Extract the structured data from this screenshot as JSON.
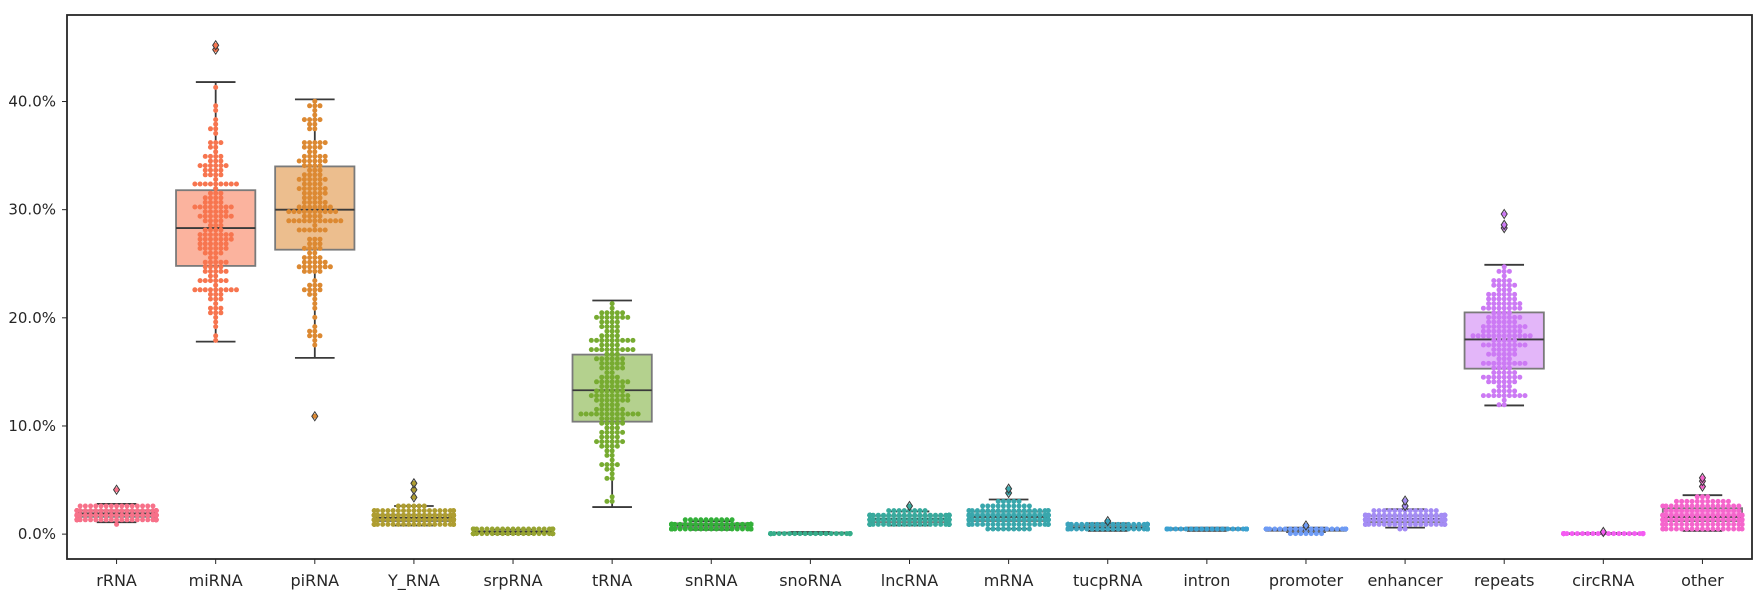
{
  "chart_data": {
    "type": "box+swarm",
    "title": "",
    "xlabel": "",
    "ylabel": "",
    "ylim": [
      -0.023,
      0.48
    ],
    "yticks": [
      0.0,
      0.1,
      0.2,
      0.3,
      0.4
    ],
    "ytick_labels": [
      "0.0%",
      "10.0%",
      "20.0%",
      "30.0%",
      "40.0%"
    ],
    "grid": false,
    "legend": "none",
    "categories": [
      {
        "name": "rRNA",
        "color": "#f77189",
        "box": {
          "q1": 0.016,
          "median": 0.019,
          "q3": 0.022,
          "whislo": 0.011,
          "whishi": 0.028
        },
        "outliers": [
          0.041
        ],
        "n_points": 130
      },
      {
        "name": "miRNA",
        "color": "#f7754f",
        "box": {
          "q1": 0.248,
          "median": 0.283,
          "q3": 0.318,
          "whislo": 0.178,
          "whishi": 0.418
        },
        "outliers": [
          0.448,
          0.452
        ],
        "n_points": 170
      },
      {
        "name": "piRNA",
        "color": "#dc8932",
        "box": {
          "q1": 0.263,
          "median": 0.3,
          "q3": 0.34,
          "whislo": 0.163,
          "whishi": 0.402
        },
        "outliers": [
          0.109
        ],
        "n_points": 170
      },
      {
        "name": "Y_RNA",
        "color": "#ae9d31",
        "box": {
          "q1": 0.012,
          "median": 0.015,
          "q3": 0.018,
          "whislo": 0.008,
          "whishi": 0.026
        },
        "outliers": [
          0.034,
          0.041,
          0.047
        ],
        "n_points": 160
      },
      {
        "name": "srpRNA",
        "color": "#97a431",
        "box": {
          "q1": 0.001,
          "median": 0.002,
          "q3": 0.003,
          "whislo": 0.0,
          "whishi": 0.004
        },
        "outliers": [],
        "n_points": 80
      },
      {
        "name": "tRNA",
        "color": "#77ab31",
        "box": {
          "q1": 0.104,
          "median": 0.133,
          "q3": 0.166,
          "whislo": 0.025,
          "whishi": 0.216
        },
        "outliers": [],
        "n_points": 180
      },
      {
        "name": "snRNA",
        "color": "#33b039",
        "box": {
          "q1": 0.006,
          "median": 0.008,
          "q3": 0.01,
          "whislo": 0.004,
          "whishi": 0.012
        },
        "outliers": [],
        "n_points": 120
      },
      {
        "name": "snoRNA",
        "color": "#36ad8a",
        "box": {
          "q1": 0.0005,
          "median": 0.001,
          "q3": 0.0015,
          "whislo": 0.0,
          "whishi": 0.002
        },
        "outliers": [],
        "n_points": 80
      },
      {
        "name": "lncRNA",
        "color": "#38aa9d",
        "box": {
          "q1": 0.011,
          "median": 0.014,
          "q3": 0.017,
          "whislo": 0.008,
          "whishi": 0.021
        },
        "outliers": [
          0.026
        ],
        "n_points": 130
      },
      {
        "name": "mRNA",
        "color": "#39a7ac",
        "box": {
          "q1": 0.012,
          "median": 0.016,
          "q3": 0.021,
          "whislo": 0.005,
          "whishi": 0.032
        },
        "outliers": [
          0.038,
          0.042
        ],
        "n_points": 140
      },
      {
        "name": "tucpRNA",
        "color": "#3ba3bc",
        "box": {
          "q1": 0.005,
          "median": 0.006,
          "q3": 0.008,
          "whislo": 0.003,
          "whishi": 0.01
        },
        "outliers": [
          0.012
        ],
        "n_points": 110
      },
      {
        "name": "intron",
        "color": "#3ba1d0",
        "box": {
          "q1": 0.004,
          "median": 0.005,
          "q3": 0.0055,
          "whislo": 0.003,
          "whishi": 0.006
        },
        "outliers": [],
        "n_points": 70
      },
      {
        "name": "promoter",
        "color": "#6e9bf4",
        "box": {
          "q1": 0.003,
          "median": 0.004,
          "q3": 0.005,
          "whislo": 0.002,
          "whishi": 0.006
        },
        "outliers": [
          0.008
        ],
        "n_points": 70
      },
      {
        "name": "enhancer",
        "color": "#a48cf4",
        "box": {
          "q1": 0.011,
          "median": 0.014,
          "q3": 0.017,
          "whislo": 0.006,
          "whishi": 0.023
        },
        "outliers": [
          0.026,
          0.031
        ],
        "n_points": 120
      },
      {
        "name": "repeats",
        "color": "#cc7af4",
        "box": {
          "q1": 0.153,
          "median": 0.18,
          "q3": 0.205,
          "whislo": 0.119,
          "whishi": 0.249
        },
        "outliers": [
          0.283,
          0.286,
          0.296
        ],
        "n_points": 170
      },
      {
        "name": "circRNA",
        "color": "#f45cf2",
        "box": {
          "q1": 0.0003,
          "median": 0.0005,
          "q3": 0.0008,
          "whislo": 0.0,
          "whishi": 0.001
        },
        "outliers": [
          0.002
        ],
        "n_points": 70
      },
      {
        "name": "other",
        "color": "#f565cc",
        "box": {
          "q1": 0.012,
          "median": 0.016,
          "q3": 0.024,
          "whislo": 0.003,
          "whishi": 0.036
        },
        "outliers": [
          0.044,
          0.049,
          0.052
        ],
        "n_points": 140
      }
    ]
  }
}
